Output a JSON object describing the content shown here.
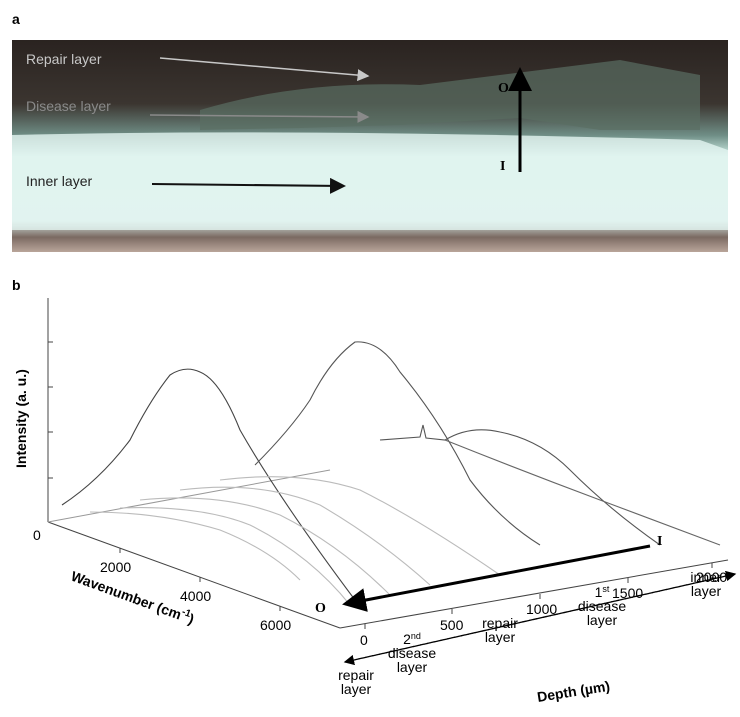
{
  "panel_a": {
    "label": "a",
    "annotations": [
      "Repair layer",
      "Disease layer",
      "Inner layer"
    ],
    "markers": [
      "O",
      "I"
    ]
  },
  "panel_b": {
    "label": "b",
    "y_axis_label": "Intensity (a. u.)",
    "y_tick": 0,
    "x_axis_label": "Wavenumber (cm",
    "x_axis_label_sup": "-1",
    "x_axis_label_end": ")",
    "wavenumber_ticks": [
      2000,
      4000,
      6000
    ],
    "depth_label": "Depth (µm)",
    "depth_ticks": [
      0,
      500,
      1000,
      1500,
      2000
    ],
    "markers": [
      "O",
      "I"
    ],
    "layers": [
      {
        "lines": [
          "repair",
          "layer"
        ]
      },
      {
        "ordinal": "2",
        "ordinal_suffix": "nd",
        "lines": [
          "disease",
          "layer"
        ]
      },
      {
        "lines": [
          "repair",
          "layer"
        ]
      },
      {
        "ordinal": "1",
        "ordinal_suffix": "st",
        "lines": [
          "disease",
          "layer"
        ]
      },
      {
        "lines": [
          "inner",
          "layer"
        ]
      }
    ]
  }
}
